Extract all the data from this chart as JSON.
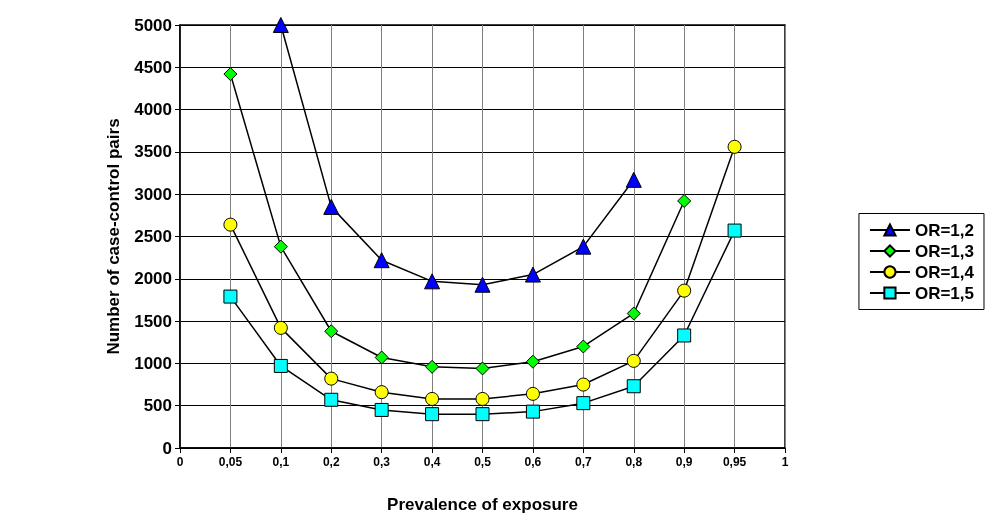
{
  "chart_data": {
    "type": "line",
    "xlabel": "Prevalence of exposure",
    "ylabel": "Number of case-control pairs",
    "categories": [
      "0",
      "0,05",
      "0,1",
      "0,2",
      "0,3",
      "0,4",
      "0,5",
      "0,6",
      "0,7",
      "0,8",
      "0,9",
      "0,95",
      "1"
    ],
    "series": [
      {
        "name": "OR=1,2",
        "color": "#0000ff",
        "marker": "triangle",
        "values": [
          null,
          null,
          5000,
          2850,
          2220,
          1970,
          1930,
          2050,
          2380,
          3170,
          null,
          null,
          null
        ]
      },
      {
        "name": "OR=1,3",
        "color": "#00ff00",
        "marker": "diamond",
        "values": [
          null,
          4420,
          2380,
          1380,
          1070,
          960,
          940,
          1020,
          1200,
          1590,
          2920,
          null,
          null
        ]
      },
      {
        "name": "OR=1,4",
        "color": "#ffff00",
        "marker": "circle",
        "values": [
          null,
          2640,
          1420,
          820,
          660,
          580,
          580,
          640,
          750,
          1030,
          1860,
          3560,
          null
        ]
      },
      {
        "name": "OR=1,5",
        "color": "#00ffff",
        "marker": "square",
        "values": [
          null,
          1790,
          970,
          570,
          450,
          400,
          400,
          430,
          530,
          730,
          1330,
          2570,
          null
        ]
      }
    ],
    "ylim": [
      0,
      5000
    ],
    "yticks": [
      0,
      500,
      1000,
      1500,
      2000,
      2500,
      3000,
      3500,
      4000,
      4500,
      5000
    ],
    "grid": true,
    "legend": "right",
    "line_style": "solid"
  }
}
